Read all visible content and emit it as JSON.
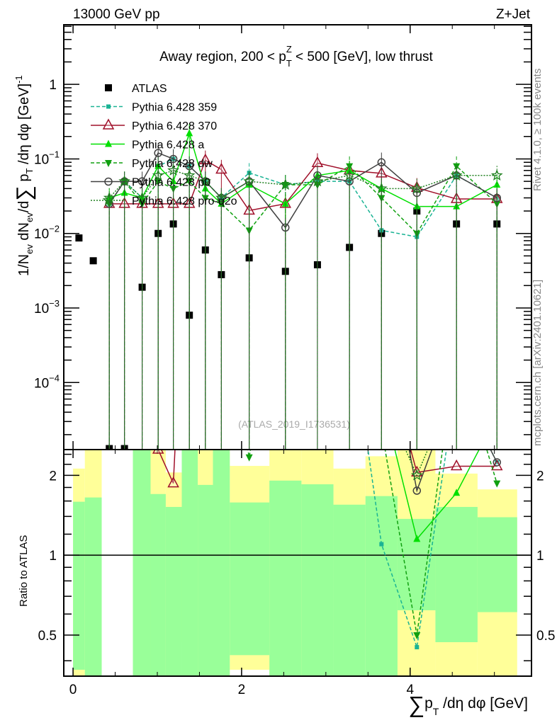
{
  "header": {
    "left": "13000 GeV pp",
    "right": "Z+Jet"
  },
  "side": {
    "rivet": "Rivet 4.1.0, ≥ 100k events",
    "mcplots": "mcplots.cern.ch [arXiv:2401.10621]"
  },
  "watermark": "(ATLAS_2019_I1736531)",
  "chart_data": {
    "type": "line",
    "title": {
      "pre": "Away region, 200 < p",
      "sub": "T",
      "sup": "Z",
      "post": " < 500 [GeV], low thrust"
    },
    "ylabel": {
      "a": "1/N",
      "a_sub": "ev",
      "b": " dN",
      "b_sub": "ev",
      "c": "/d",
      "sum": "∑",
      "d": " p",
      "d_sub": "T",
      "e": " /dη dφ  [GeV]",
      "e_sup": "-1"
    },
    "xlabel": {
      "sum": "∑",
      "a": "p",
      "a_sub": "T",
      "b": " /dη dφ [GeV]"
    },
    "ratio_ylabel": "Ratio to ATLAS",
    "xlim": [
      -0.11,
      5.44
    ],
    "ylim": [
      1.26e-05,
      6.3
    ],
    "yscale": "log",
    "ratio_ylim": [
      0.35,
      2.5
    ],
    "xticks": [
      "0",
      "2",
      "4"
    ],
    "xtick_values": [
      0,
      2,
      4
    ],
    "yticks": [
      {
        "v": 1,
        "label": "1"
      },
      {
        "v": 0.1,
        "label": "10",
        "exp": "−1"
      },
      {
        "v": 0.01,
        "label": "10",
        "exp": "−2"
      },
      {
        "v": 0.001,
        "label": "10",
        "exp": "−3"
      },
      {
        "v": 0.0001,
        "label": "10",
        "exp": "−4"
      }
    ],
    "ratio_yticks": [
      {
        "v": 0.5,
        "label": "0.5"
      },
      {
        "v": 1,
        "label": "1"
      },
      {
        "v": 2,
        "label": "2"
      }
    ],
    "bin_edges": [
      0,
      0.14,
      0.34,
      0.52,
      0.71,
      0.92,
      1.1,
      1.29,
      1.48,
      1.66,
      1.86,
      2.33,
      2.71,
      3.09,
      3.47,
      3.85,
      4.3,
      4.8,
      5.27
    ],
    "x": [
      0.07,
      0.24,
      0.43,
      0.61,
      0.82,
      1.01,
      1.19,
      1.38,
      1.57,
      1.76,
      2.09,
      2.52,
      2.9,
      3.28,
      3.66,
      4.08,
      4.55,
      5.03
    ],
    "bands": {
      "yellow": [
        [
          0.3,
          2.12
        ],
        [
          0.3,
          2.5
        ],
        null,
        null,
        [
          0.3,
          2.5
        ],
        [
          0.3,
          2.5
        ],
        [
          0.47,
          2.05
        ],
        [
          0.3,
          2.5
        ],
        [
          0.3,
          2.5
        ],
        [
          0.3,
          2.5
        ],
        [
          0.37,
          2.17
        ],
        [
          0.3,
          2.5
        ],
        [
          0.3,
          2.5
        ],
        [
          0.44,
          2.12
        ],
        [
          0.3,
          2.36
        ],
        [
          0.3,
          2.5
        ],
        [
          0.3,
          2.03
        ],
        [
          0.3,
          1.77
        ]
      ],
      "green": [
        [
          0.37,
          1.59
        ],
        [
          0.3,
          1.65
        ],
        null,
        null,
        [
          0.3,
          2.5
        ],
        [
          0.3,
          1.7
        ],
        [
          0.3,
          1.52
        ],
        [
          0.3,
          2.5
        ],
        [
          0.3,
          1.84
        ],
        [
          0.3,
          2.5
        ],
        [
          0.42,
          1.58
        ],
        [
          0.3,
          1.91
        ],
        [
          0.3,
          1.85
        ],
        [
          0.3,
          1.55
        ],
        [
          0.3,
          1.67
        ],
        [
          0.62,
          1.37
        ],
        [
          0.47,
          1.52
        ],
        [
          0.61,
          1.39
        ]
      ],
      "yellow_color": "#ffff99",
      "green_color": "#99ff99"
    },
    "series": [
      {
        "name": "ATLAS",
        "color": "#000000",
        "marker": "square",
        "dash": "none",
        "values": [
          0.0087,
          0.0043,
          1.3e-05,
          1.3e-05,
          0.0019,
          0.01,
          0.0134,
          0.0008,
          0.006,
          0.0028,
          0.0047,
          0.0031,
          0.0038,
          0.0065,
          0.01,
          0.02,
          0.0134,
          0.0134
        ]
      },
      {
        "name": "Pythia 6.428 359",
        "color": "#1ab394",
        "marker": "smallsquare",
        "dash": "5,3",
        "values": [
          null,
          null,
          0.025,
          0.05,
          0.03,
          0.08,
          0.1,
          0.08,
          0.05,
          0.03,
          0.065,
          0.045,
          0.05,
          0.05,
          0.011,
          0.009,
          0.06,
          0.03
        ]
      },
      {
        "name": "Pythia 6.428 370",
        "color": "#a0102a",
        "marker": "triangle-open",
        "dash": "none",
        "values": [
          null,
          null,
          0.025,
          0.025,
          0.025,
          0.025,
          0.025,
          0.025,
          0.096,
          0.072,
          0.0203,
          0.025,
          0.088,
          0.07,
          0.064,
          0.041,
          0.029,
          0.029
        ]
      },
      {
        "name": "Pythia 6.428 a",
        "color": "#00e000",
        "marker": "triangle",
        "dash": "none",
        "values": [
          null,
          null,
          0.03,
          0.035,
          0.03,
          0.08,
          0.05,
          0.22,
          0.04,
          0.025,
          0.045,
          0.025,
          0.06,
          0.07,
          0.04,
          0.023,
          0.023,
          0.045
        ]
      },
      {
        "name": "Pythia 6.428 dw",
        "color": "#10a010",
        "marker": "triangle-down",
        "dash": "5,3",
        "values": [
          null,
          null,
          0.025,
          0.05,
          0.025,
          0.05,
          0.04,
          0.05,
          0.03,
          0.025,
          0.011,
          0.045,
          0.045,
          0.08,
          0.03,
          0.01,
          0.08,
          0.025
        ]
      },
      {
        "name": "Pythia 6.428 p0",
        "color": "#404040",
        "marker": "circle-open",
        "dash": "none",
        "values": [
          null,
          null,
          0.025,
          0.05,
          0.05,
          0.12,
          0.1,
          0.08,
          0.05,
          0.03,
          0.05,
          0.012,
          0.06,
          0.05,
          0.09,
          0.035,
          0.06,
          0.03
        ]
      },
      {
        "name": "Pythia 6.428 pro-q2o",
        "color": "#208020",
        "marker": "star",
        "dash": "2,2",
        "values": [
          null,
          null,
          0.03,
          0.05,
          0.03,
          0.06,
          0.07,
          0.06,
          0.05,
          0.03,
          0.05,
          0.045,
          0.05,
          0.06,
          0.04,
          0.04,
          0.06,
          0.06
        ]
      }
    ]
  }
}
